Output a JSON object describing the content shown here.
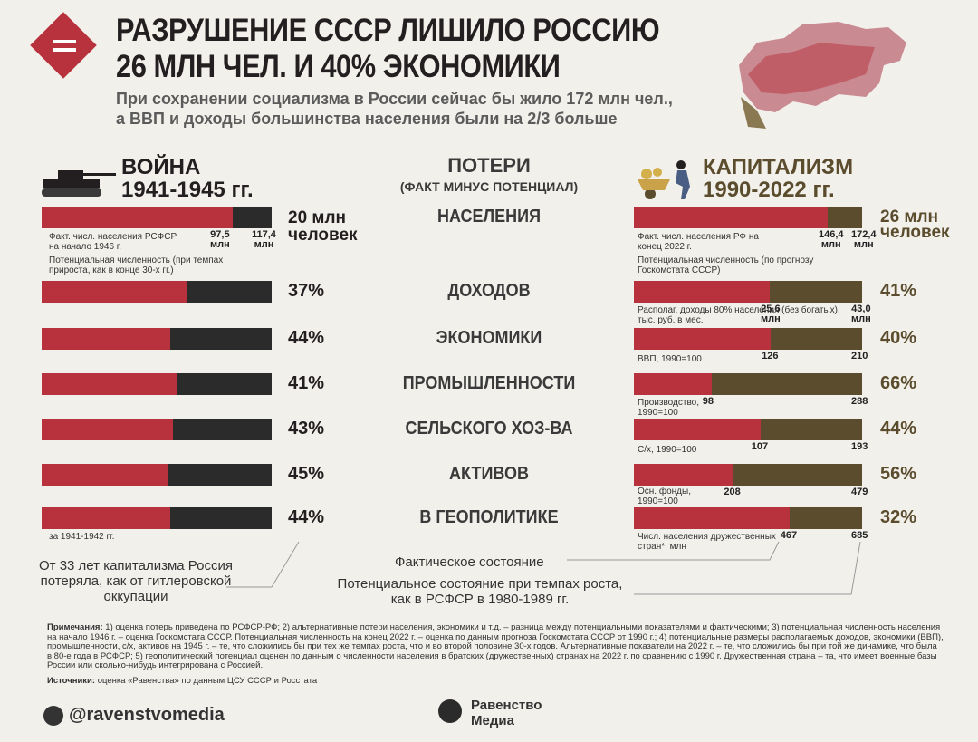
{
  "header": {
    "title_line1": "РАЗРУШЕНИЕ СССР ЛИШИЛО РОССИЮ",
    "title_line2": "26 МЛН ЧЕЛ. И 40% ЭКОНОМИКИ",
    "subtitle_line1": "При сохранении социализма в России сейчас бы жило 172 млн чел.,",
    "subtitle_line2": "а ВВП и доходы большинства населения были на 2/3 больше"
  },
  "left_header": {
    "line1": "ВОЙНА",
    "line2": "1941-1945 гг."
  },
  "right_header": {
    "line1": "КАПИТАЛИЗМ",
    "line2": "1990-2022 гг."
  },
  "center_header": {
    "line1": "ПОТЕРИ",
    "line2": "(ФАКТ МИНУС ПОТЕНЦИАЛ)"
  },
  "chart_data": {
    "type": "bar",
    "title": "Потери (факт минус потенциал)",
    "categories": [
      "НАСЕЛЕНИЯ",
      "ДОХОДОВ",
      "ЭКОНОМИКИ",
      "ПРОМЫШЛЕННОСТИ",
      "СЕЛЬСКОГО ХОЗ-ВА",
      "АКТИВОВ",
      "В ГЕОПОЛИТИКЕ"
    ],
    "war": {
      "name": "ВОЙНА 1941-1945 гг.",
      "labels": [
        "20 млн человек",
        "37%",
        "44%",
        "41%",
        "43%",
        "45%",
        "44%"
      ],
      "loss_fraction": [
        0.17,
        0.37,
        0.44,
        0.41,
        0.43,
        0.45,
        0.44
      ],
      "population": {
        "actual": "97,5",
        "potential": "117,4",
        "unit": "млн"
      }
    },
    "capitalism": {
      "name": "КАПИТАЛИЗМ 1990-2022 гг.",
      "labels": [
        "26 млн человек",
        "41%",
        "40%",
        "66%",
        "44%",
        "56%",
        "32%"
      ],
      "actual": [
        "146,4",
        "25,6",
        "126",
        "98",
        "107",
        "208",
        "467"
      ],
      "potential": [
        "172,4",
        "43,0",
        "210",
        "288",
        "193",
        "479",
        "685"
      ],
      "actual_values": [
        146.4,
        25.6,
        126,
        98,
        107,
        208,
        467
      ],
      "potential_values": [
        172.4,
        43.0,
        210,
        288,
        193,
        479,
        685
      ],
      "units": [
        "млн",
        "млн",
        "",
        "",
        "",
        "",
        ""
      ]
    }
  },
  "left_notes": {
    "pop_fact": "Факт. числ. населения РСФСР на начало 1946 г.",
    "pop_potential": "Потенциальная численность (при темпах прироста, как в конце 30-х гг.)",
    "geo_note": "за 1941-1942 гг."
  },
  "right_notes": {
    "pop_fact": "Факт. числ. населения РФ на конец 2022 г.",
    "pop_potential": "Потенциальная численность (по прогнозу Госкомстата СССР)",
    "income": "Располаг. доходы 80% населения (без богатых), тыс. руб. в мес.",
    "gdp": "ВВП, 1990=100",
    "industry": "Производство, 1990=100",
    "agri": "С/х, 1990=100",
    "assets": "Осн. фонды, 1990=100",
    "geo": "Числ. населения дружественных стран*, млн"
  },
  "comparison_note": "От 33 лет капитализма Россия потеряла, как от гитлеровской оккупации",
  "legend": {
    "actual": "Фактическое состояние",
    "potential": "Потенциальное состояние при темпах роста, как в РСФСР в 1980-1989 гг."
  },
  "footnotes": {
    "label": "Примечания:",
    "text": "1) оценка потерь приведена по РСФСР-РФ; 2) альтернативные потери населения, экономики и т.д. – разница между потенциальными показателями и фактическими; 3) потенциальная численность населения на начало 1946 г. – оценка Госкомстата СССР. Потенциальная численность на конец 2022 г. – оценка по данным прогноза Госкомстата СССР от 1990 г.; 4) потенциальные размеры располагаемых доходов, экономики (ВВП), промышленности, с/х, активов на 1945 г. – те, что сложились бы при тех же темпах роста, что и во второй половине 30-х годов. Альтернативные показатели на 2022 г. – те, что сложились бы при той же динамике, что была в 80-е года в РСФСР; 5) геополитический потенциал оценен по данным о численности населения в братских (дружественных) странах на 2022 г. по сравнению с 1990 г. Дружественная страна – та, что имеет военные базы России или сколько-нибудь интегрирована с Россией.",
    "sources_label": "Источники:",
    "sources_text": "оценка «Равенства» по данным ЦСУ СССР и Росстата"
  },
  "footer": {
    "handle": "@ravenstvomedia",
    "brand_line1": "Равенство",
    "brand_line2": "Медиа"
  },
  "colors": {
    "red": "#b8323e",
    "black": "#2b2b2b",
    "brown": "#5a4c2c",
    "bg": "#f2f0eb"
  }
}
